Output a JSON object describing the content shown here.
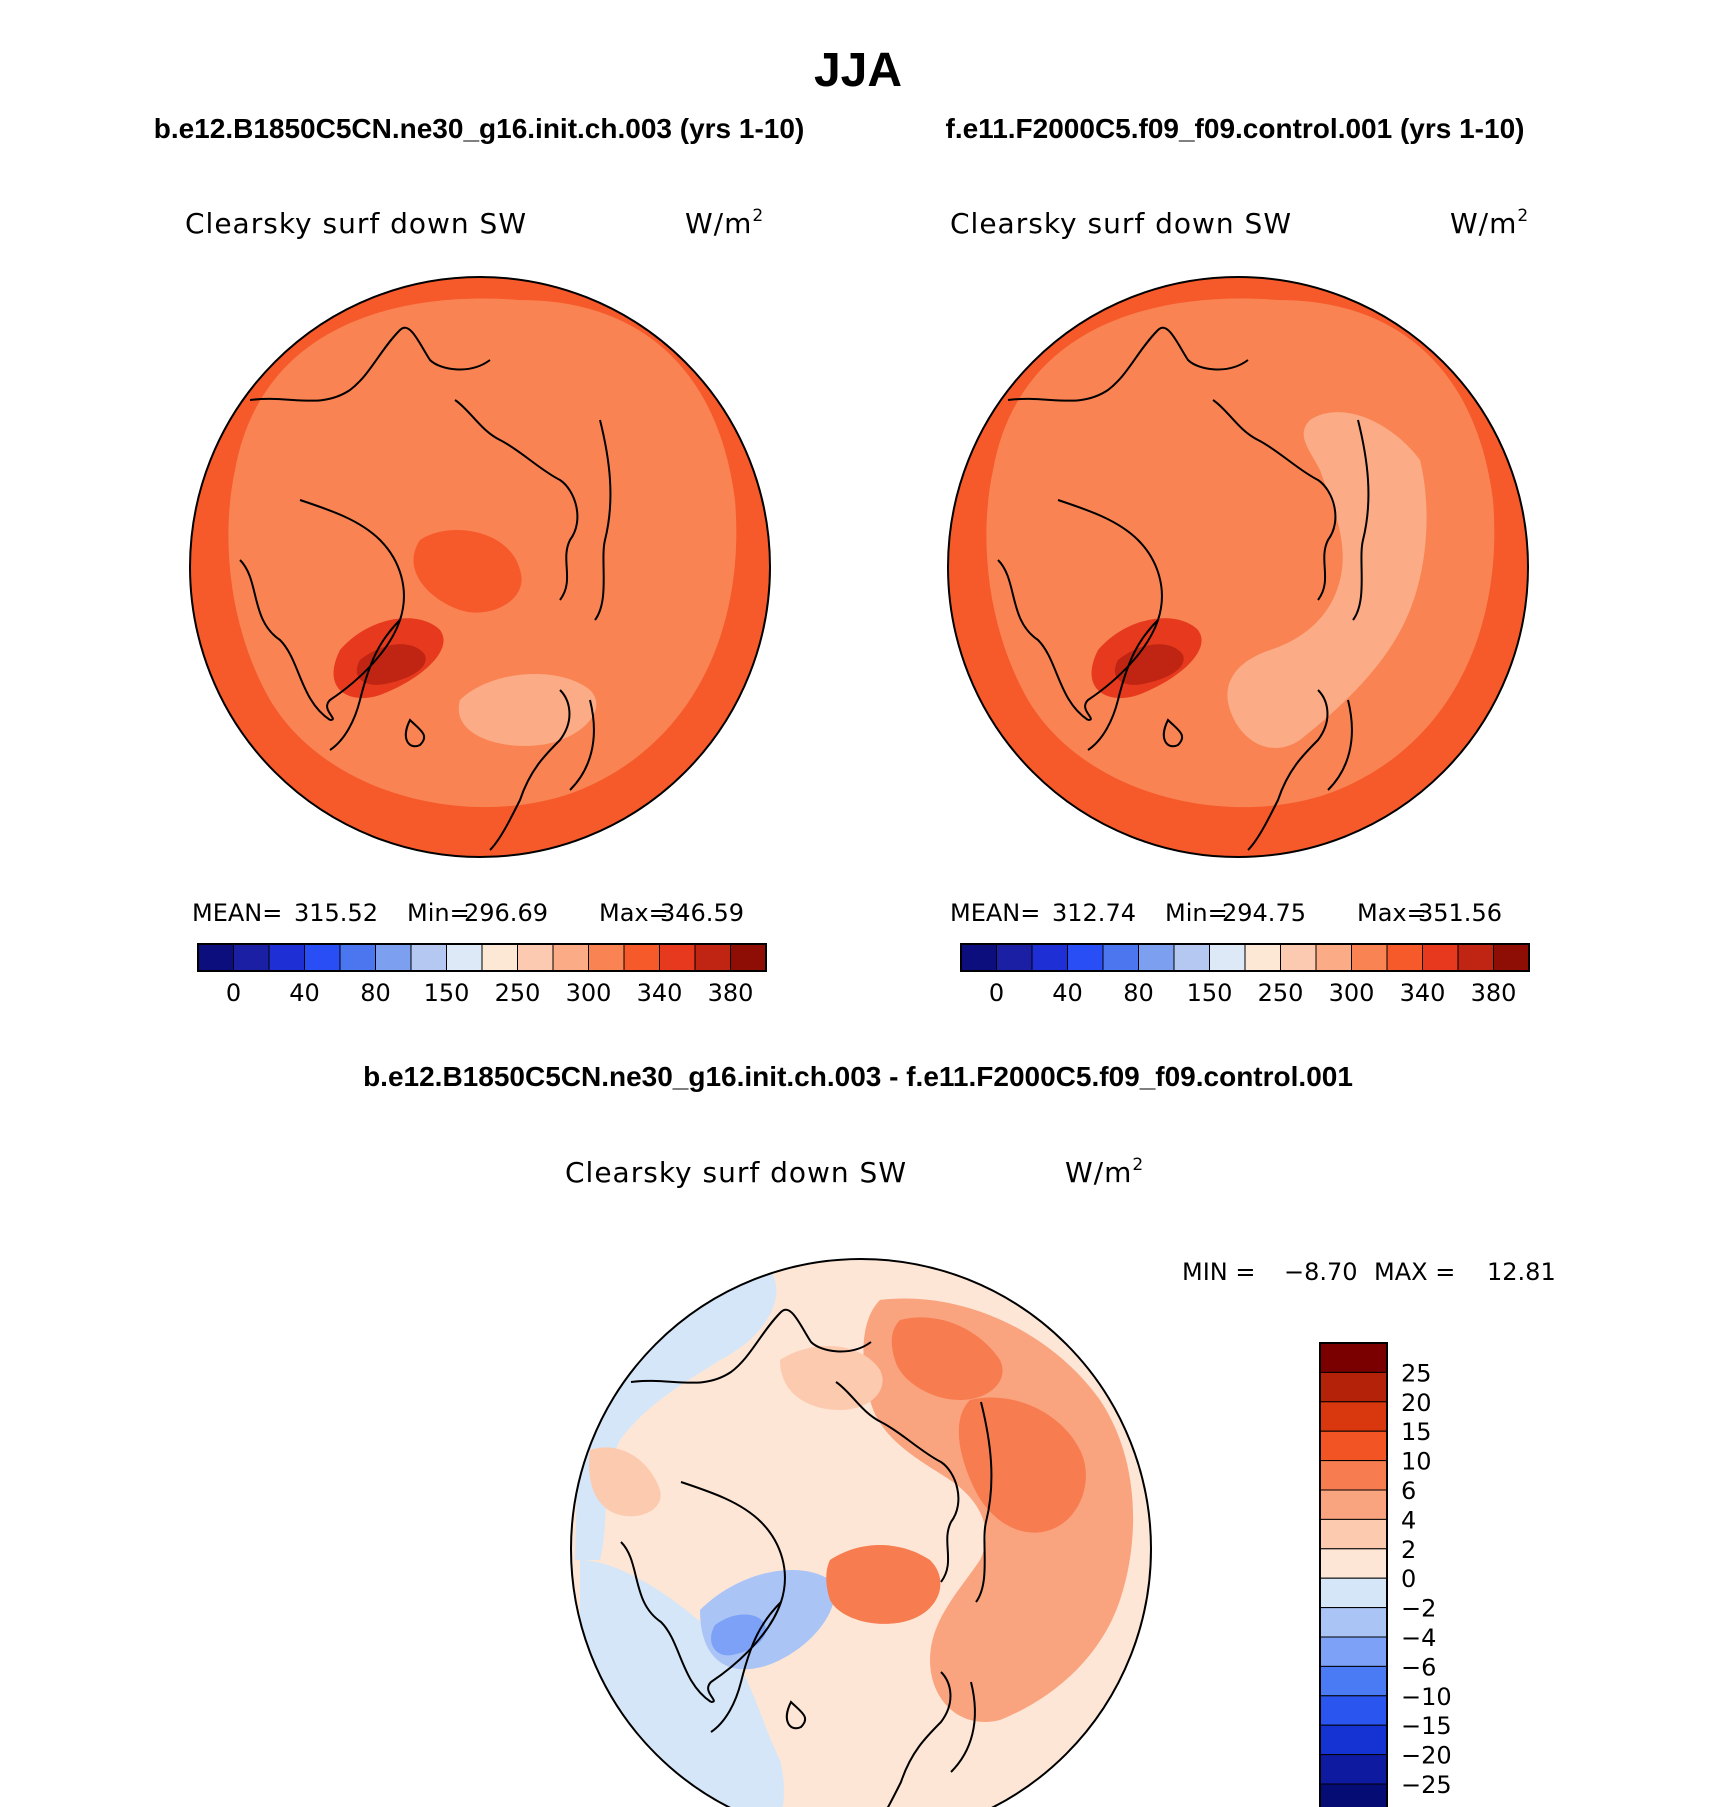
{
  "page_title": "JJA",
  "colors": {
    "abs_levels": [
      "#0b0e7c",
      "#1a1fa3",
      "#1e2fd6",
      "#2a4ef5",
      "#4b76f0",
      "#7d9ff0",
      "#b4c8f2",
      "#dde9f7",
      "#fde7d5",
      "#fccab0",
      "#fbab85",
      "#f98353",
      "#f6592a",
      "#e6391d",
      "#bf2512",
      "#8e0d05"
    ],
    "diff_levels": [
      "#050c73",
      "#0e1aa0",
      "#1532d2",
      "#2a55ef",
      "#4a7bf5",
      "#7ca1f7",
      "#aac4f6",
      "#d4e6f8",
      "#fde6d6",
      "#fccaaf",
      "#faa47f",
      "#f77c4f",
      "#f25424",
      "#d9380f",
      "#b4220a",
      "#7a0000"
    ]
  },
  "chart_data": [
    {
      "type": "heatmap",
      "panel": "top-left",
      "case_title": "b.e12.B1850C5CN.ne30_g16.init.ch.003 (yrs 1-10)",
      "variable": "Clearsky surf down SW",
      "units": "W/m",
      "units_sup": "2",
      "stats": {
        "mean_label": "MEAN=",
        "mean": "315.52",
        "min_label": "Min=",
        "min": "296.69",
        "max_label": "Max=",
        "max": "346.59"
      },
      "stats_values": {
        "mean": 315.52,
        "min": 296.69,
        "max": 346.59
      },
      "colorbar": {
        "orientation": "horizontal",
        "levels": 16,
        "tick_labels": [
          "0",
          "40",
          "80",
          "150",
          "250",
          "300",
          "340",
          "380"
        ]
      }
    },
    {
      "type": "heatmap",
      "panel": "top-right",
      "case_title": "f.e11.F2000C5.f09_f09.control.001 (yrs 1-10)",
      "variable": "Clearsky surf down SW",
      "units": "W/m",
      "units_sup": "2",
      "stats": {
        "mean_label": "MEAN=",
        "mean": "312.74",
        "min_label": "Min=",
        "min": "294.75",
        "max_label": "Max=",
        "max": "351.56"
      },
      "stats_values": {
        "mean": 312.74,
        "min": 294.75,
        "max": 351.56
      },
      "colorbar": {
        "orientation": "horizontal",
        "levels": 16,
        "tick_labels": [
          "0",
          "40",
          "80",
          "150",
          "250",
          "300",
          "340",
          "380"
        ]
      }
    },
    {
      "type": "heatmap",
      "panel": "bottom-difference",
      "case_title": "b.e12.B1850C5CN.ne30_g16.init.ch.003 - f.e11.F2000C5.f09_f09.control.001",
      "variable": "Clearsky surf down SW",
      "units": "W/m",
      "units_sup": "2",
      "minmax": {
        "min_label": "MIN =",
        "min": "−8.70",
        "max_label": "MAX =",
        "max": "12.81"
      },
      "minmax_values": {
        "min": -8.7,
        "max": 12.81
      },
      "colorbar": {
        "orientation": "vertical",
        "levels": 16,
        "tick_labels": [
          "25",
          "20",
          "15",
          "10",
          "6",
          "4",
          "2",
          "0",
          "−2",
          "−4",
          "−6",
          "−10",
          "−15",
          "−20",
          "−25"
        ]
      }
    }
  ]
}
